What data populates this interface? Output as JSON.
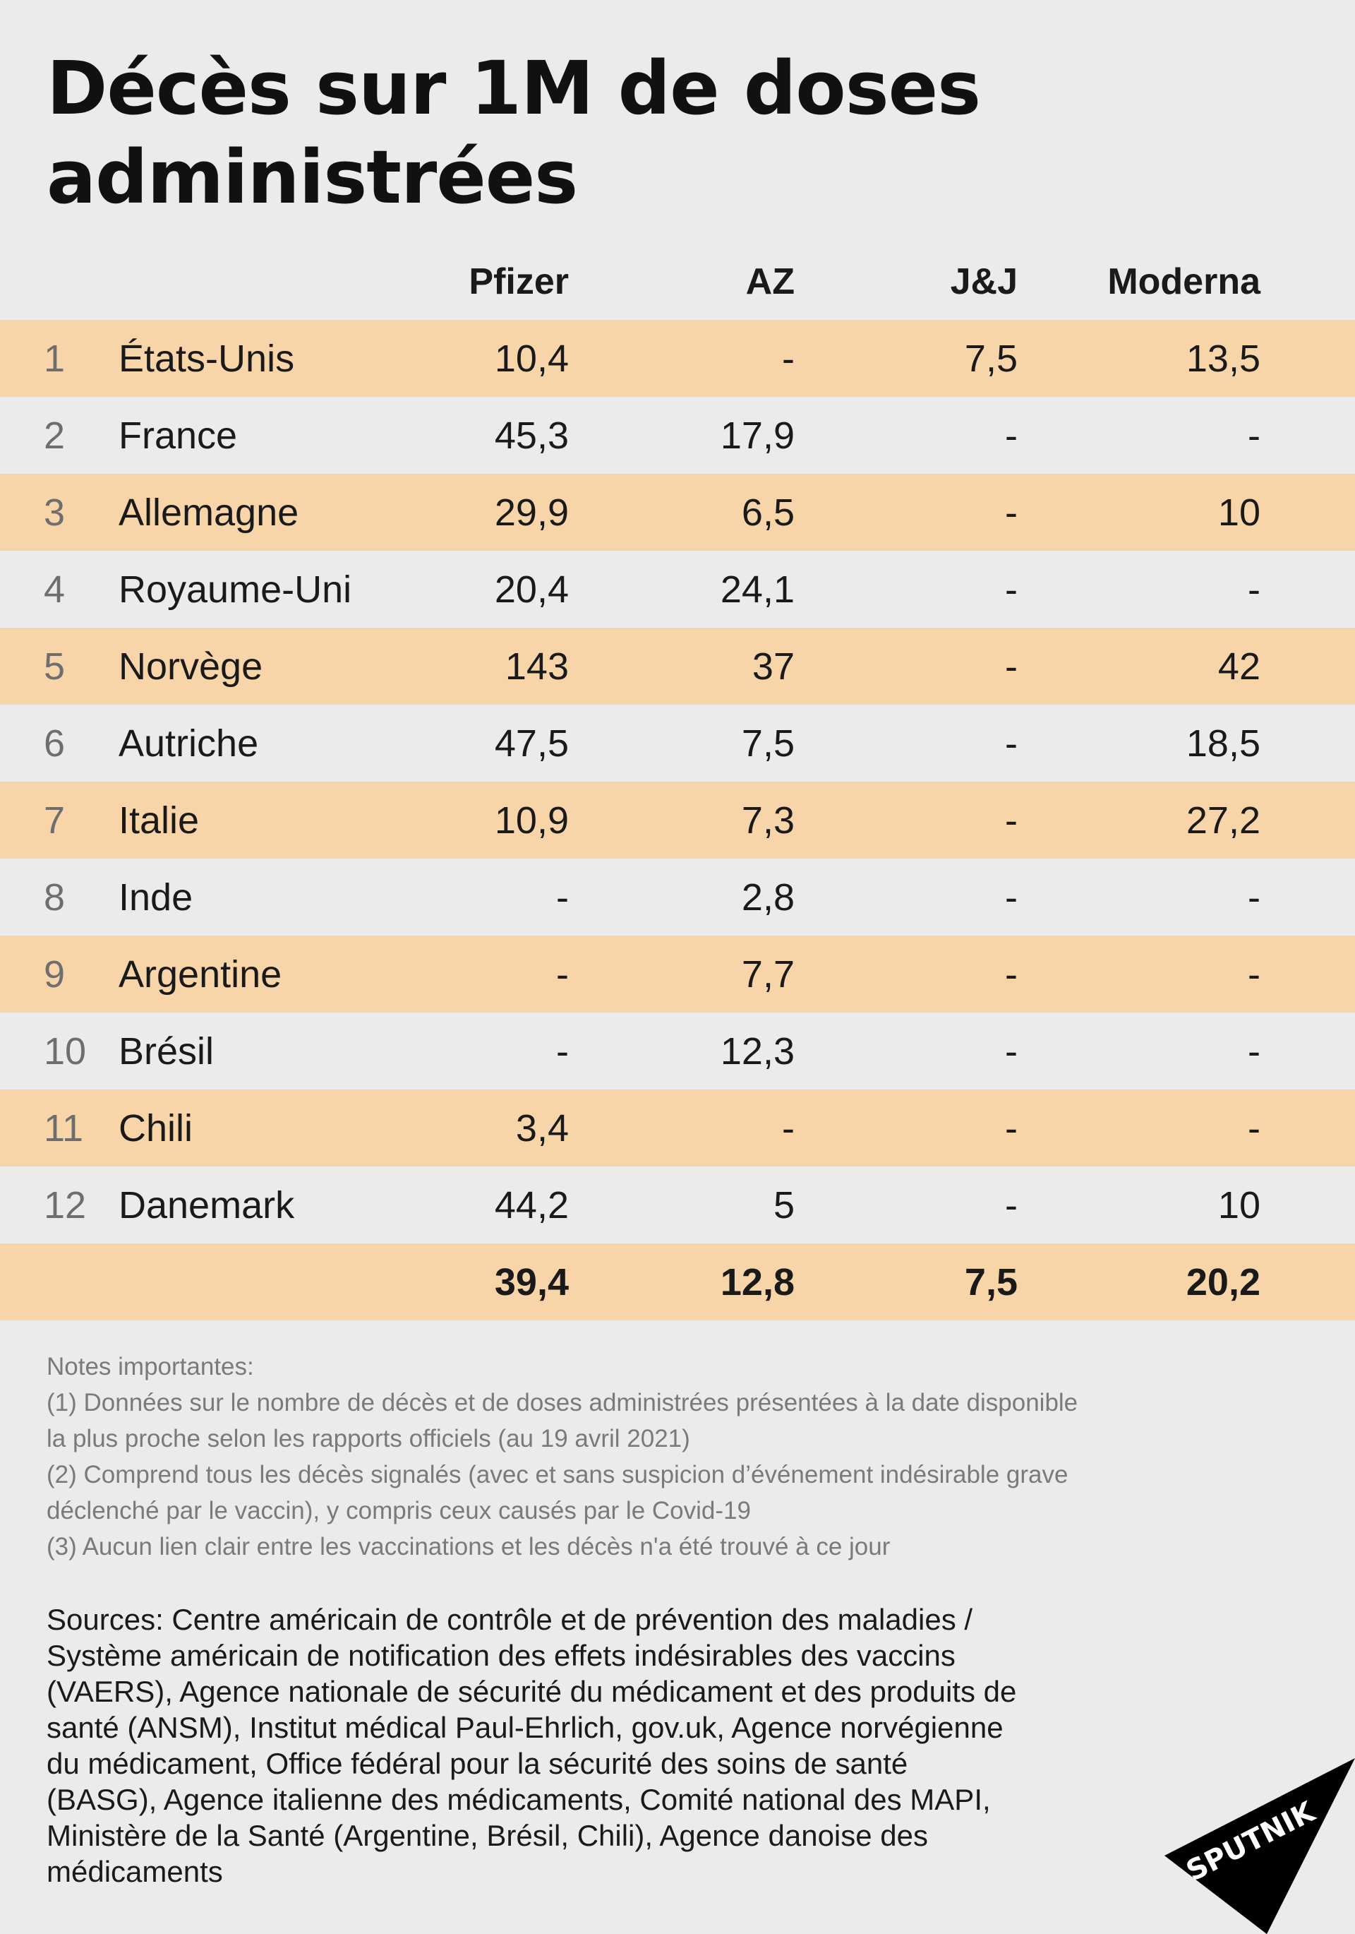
{
  "title": "Décès sur 1M de doses administrées",
  "chart_data": {
    "type": "table",
    "title": "Décès sur 1M de doses administrées",
    "columns": [
      "Pfizer",
      "AZ",
      "J&J",
      "Moderna"
    ],
    "rows": [
      {
        "rank": "1",
        "country": "États-Unis",
        "values": [
          "10,4",
          "-",
          "7,5",
          "13,5"
        ]
      },
      {
        "rank": "2",
        "country": "France",
        "values": [
          "45,3",
          "17,9",
          "-",
          "-"
        ]
      },
      {
        "rank": "3",
        "country": "Allemagne",
        "values": [
          "29,9",
          "6,5",
          "-",
          "10"
        ]
      },
      {
        "rank": "4",
        "country": "Royaume-Uni",
        "values": [
          "20,4",
          "24,1",
          "-",
          "-"
        ]
      },
      {
        "rank": "5",
        "country": "Norvège",
        "values": [
          "143",
          "37",
          "-",
          "42"
        ]
      },
      {
        "rank": "6",
        "country": "Autriche",
        "values": [
          "47,5",
          "7,5",
          "-",
          "18,5"
        ]
      },
      {
        "rank": "7",
        "country": "Italie",
        "values": [
          "10,9",
          "7,3",
          "-",
          "27,2"
        ]
      },
      {
        "rank": "8",
        "country": "Inde",
        "values": [
          "-",
          "2,8",
          "-",
          "-"
        ]
      },
      {
        "rank": "9",
        "country": "Argentine",
        "values": [
          "-",
          "7,7",
          "-",
          "-"
        ]
      },
      {
        "rank": "10",
        "country": "Brésil",
        "values": [
          "-",
          "12,3",
          "-",
          "-"
        ]
      },
      {
        "rank": "11",
        "country": "Chili",
        "values": [
          "3,4",
          "-",
          "-",
          "-"
        ]
      },
      {
        "rank": "12",
        "country": "Danemark",
        "values": [
          "44,2",
          "5",
          "-",
          "10"
        ]
      }
    ],
    "totals": [
      "39,4",
      "12,8",
      "7,5",
      "20,2"
    ]
  },
  "notes": [
    "Notes importantes:",
    "(1) Données sur le nombre de décès et de doses administrées présentées à la date disponible\nla plus proche selon les rapports officiels (au 19 avril 2021)",
    "(2) Comprend tous les décès signalés (avec et sans suspicion d’événement indésirable grave\ndéclenché par le vaccin), y compris ceux causés par le Covid-19",
    "(3) Aucun lien clair entre les vaccinations et les décès n'a été trouvé à ce jour"
  ],
  "sources": "Sources: Centre américain de contrôle et de prévention des maladies /\nSystème américain de notification des effets indésirables des vaccins\n(VAERS), Agence nationale de sécurité du médicament et des produits de\nsanté (ANSM), Institut médical Paul-Ehrlich, gov.uk, Agence norvégienne\ndu médicament, Office fédéral pour la sécurité des soins de santé\n(BASG), Agence italienne des médicaments, Comité national des MAPI,\nMinistère de la Santé (Argentine, Brésil, Chili), Agence danoise des\nmédicaments",
  "logo": {
    "text": "SPUTNIK",
    "color": "#000000"
  },
  "colors": {
    "background": "#ebebeb",
    "band": "#f7d5a9"
  }
}
